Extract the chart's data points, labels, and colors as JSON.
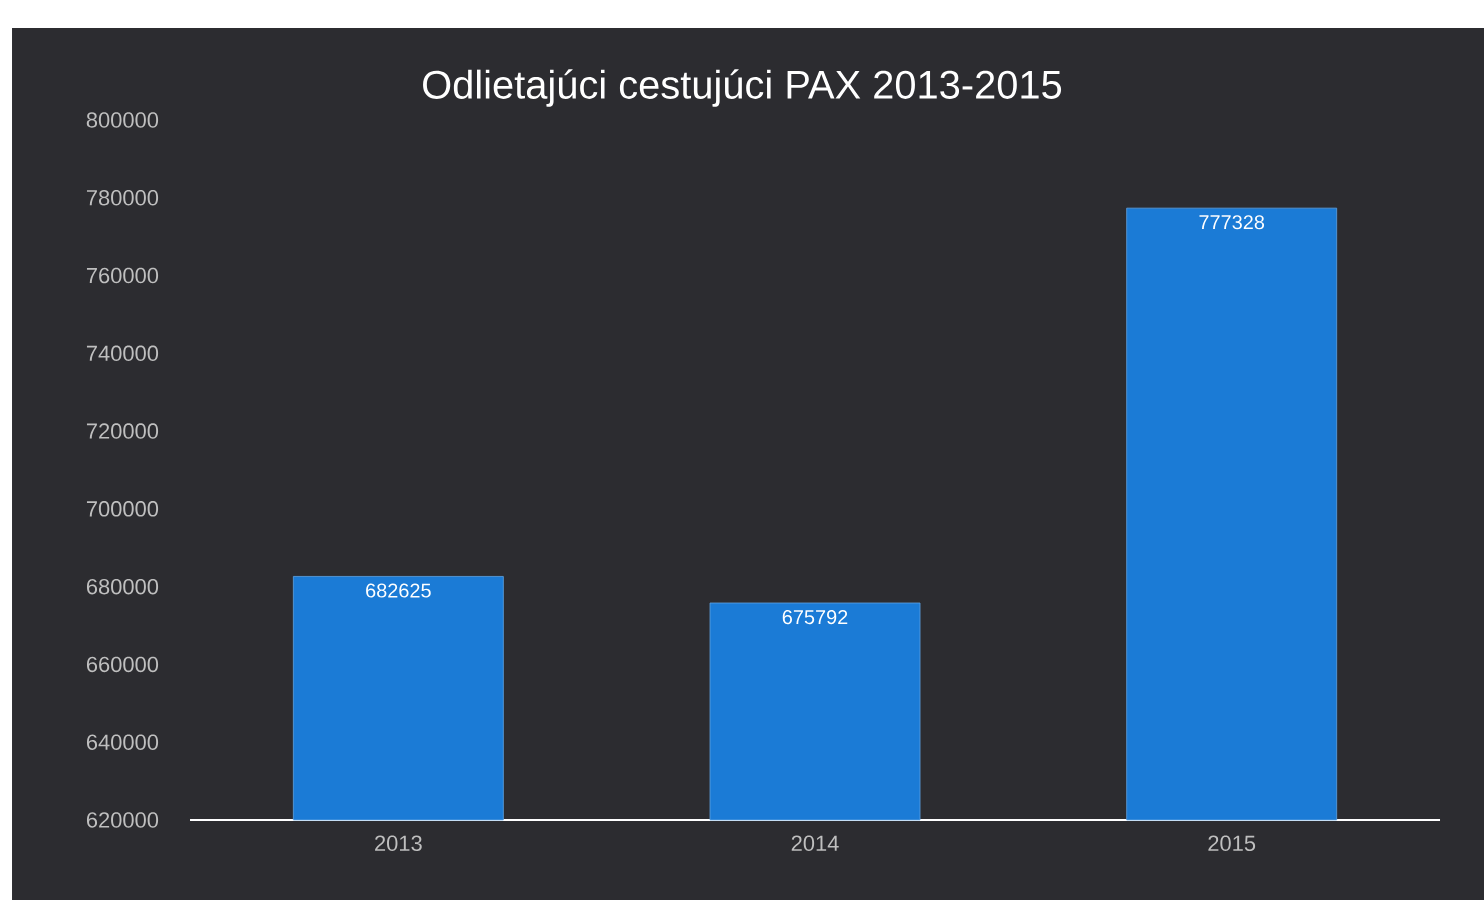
{
  "chart_data": {
    "type": "bar",
    "title": "Odlietajúci cestujúci PAX 2013-2015",
    "categories": [
      "2013",
      "2014",
      "2015"
    ],
    "values": [
      682625,
      675792,
      777328
    ],
    "value_labels": [
      "682625",
      "675792",
      "777328"
    ],
    "color": "#1b7bd6",
    "ylim": [
      620000,
      800000
    ],
    "yticks": [
      620000,
      640000,
      660000,
      680000,
      700000,
      720000,
      740000,
      760000,
      780000,
      800000
    ]
  }
}
